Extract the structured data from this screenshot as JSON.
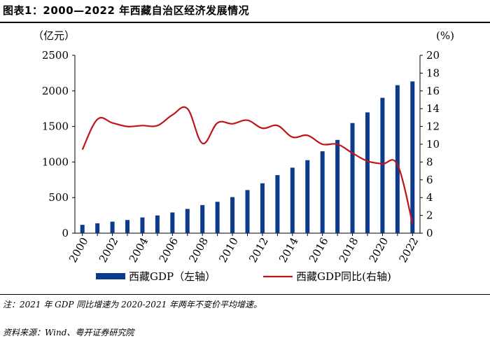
{
  "header": {
    "title": "图表1：2000—2022 年西藏自治区经济发展情况"
  },
  "chart_data": {
    "type": "bar+line",
    "categories": [
      2000,
      2001,
      2002,
      2003,
      2004,
      2005,
      2006,
      2007,
      2008,
      2009,
      2010,
      2011,
      2012,
      2013,
      2014,
      2015,
      2016,
      2017,
      2018,
      2019,
      2020,
      2021,
      2022
    ],
    "x_tick_labels": [
      "2000",
      "2002",
      "2004",
      "2006",
      "2008",
      "2010",
      "2012",
      "2014",
      "2016",
      "2018",
      "2020",
      "2022"
    ],
    "left_axis": {
      "unit_label": "（亿元）",
      "ylim": [
        0,
        2500
      ],
      "ticks": [
        "0",
        "500",
        "1000",
        "1500",
        "2000",
        "2500"
      ]
    },
    "right_axis": {
      "unit_label": "(%)",
      "ylim": [
        0,
        20
      ],
      "ticks": [
        "0",
        "2",
        "4",
        "6",
        "8",
        "10",
        "12",
        "14",
        "16",
        "18",
        "20"
      ]
    },
    "series": [
      {
        "name": "西藏GDP（左轴）",
        "kind": "bar",
        "axis": "left",
        "color": "#0d3b8c",
        "values": [
          117,
          139,
          162,
          185,
          221,
          249,
          291,
          341,
          395,
          441,
          507,
          606,
          701,
          816,
          921,
          1026,
          1151,
          1311,
          1548,
          1698,
          1903,
          2080,
          2133
        ]
      },
      {
        "name": "西藏GDP同比(右轴)",
        "kind": "line",
        "axis": "right",
        "color": "#c0141b",
        "values": [
          9.4,
          12.8,
          12.4,
          12.0,
          12.1,
          12.1,
          13.3,
          14.0,
          10.1,
          12.4,
          12.3,
          12.7,
          11.8,
          12.1,
          10.8,
          11.0,
          10.0,
          10.0,
          9.0,
          8.1,
          7.8,
          7.7,
          1.1
        ]
      }
    ]
  },
  "notes": {
    "note": "注：2021 年 GDP 同比增速为 2020-2021 年两年不变价平均增速。",
    "source": "资料来源：Wind、粤开证券研究院"
  }
}
